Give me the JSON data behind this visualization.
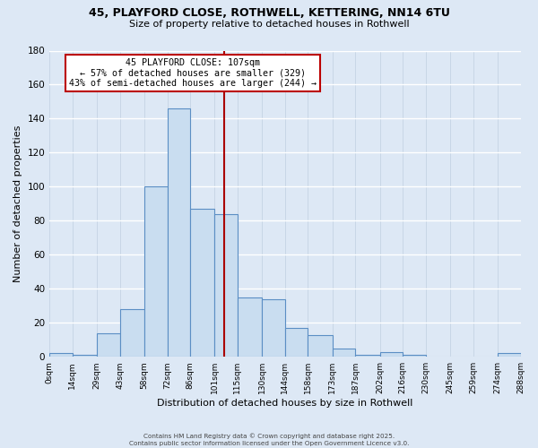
{
  "title1": "45, PLAYFORD CLOSE, ROTHWELL, KETTERING, NN14 6TU",
  "title2": "Size of property relative to detached houses in Rothwell",
  "xlabel": "Distribution of detached houses by size in Rothwell",
  "ylabel": "Number of detached properties",
  "bin_edges": [
    0,
    14,
    29,
    43,
    58,
    72,
    86,
    101,
    115,
    130,
    144,
    158,
    173,
    187,
    202,
    216,
    230,
    245,
    259,
    274,
    288
  ],
  "bar_heights": [
    2,
    1,
    14,
    28,
    100,
    146,
    87,
    84,
    35,
    34,
    17,
    13,
    5,
    1,
    3,
    1,
    0,
    0,
    0,
    2
  ],
  "bar_color": "#c9ddf0",
  "bar_edge_color": "#5b8ec4",
  "property_line_x": 107,
  "property_line_color": "#aa0000",
  "annotation_title": "45 PLAYFORD CLOSE: 107sqm",
  "annotation_line1": "← 57% of detached houses are smaller (329)",
  "annotation_line2": "43% of semi-detached houses are larger (244) →",
  "annotation_box_color": "#ffffff",
  "annotation_box_edge": "#bb0000",
  "ylim": [
    0,
    180
  ],
  "yticks": [
    0,
    20,
    40,
    60,
    80,
    100,
    120,
    140,
    160,
    180
  ],
  "tick_labels": [
    "0sqm",
    "14sqm",
    "29sqm",
    "43sqm",
    "58sqm",
    "72sqm",
    "86sqm",
    "101sqm",
    "115sqm",
    "130sqm",
    "144sqm",
    "158sqm",
    "173sqm",
    "187sqm",
    "202sqm",
    "216sqm",
    "230sqm",
    "245sqm",
    "259sqm",
    "274sqm",
    "288sqm"
  ],
  "footer1": "Contains HM Land Registry data © Crown copyright and database right 2025.",
  "footer2": "Contains public sector information licensed under the Open Government Licence v3.0.",
  "background_color": "#dde8f5",
  "grid_color": "#c0cfe0"
}
